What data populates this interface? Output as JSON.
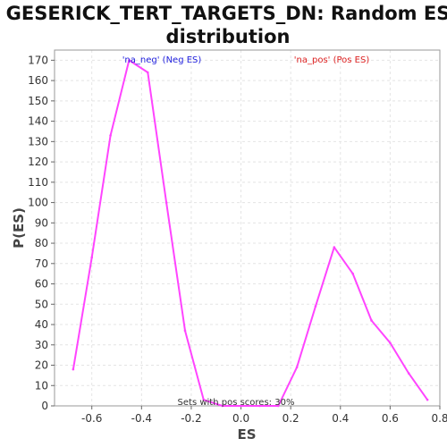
{
  "chart_data": {
    "type": "line",
    "title_line1": "GESERICK_TERT_TARGETS_DN: Random ES",
    "title_line2": "distribution",
    "xlabel": "ES",
    "ylabel": "P(ES)",
    "xlim": [
      -0.75,
      0.8
    ],
    "ylim": [
      0,
      175
    ],
    "x_ticks": [
      -0.6,
      -0.4,
      -0.2,
      0.0,
      0.2,
      0.4,
      0.6,
      0.8
    ],
    "y_ticks": [
      0,
      10,
      20,
      30,
      40,
      50,
      60,
      70,
      80,
      90,
      100,
      110,
      120,
      130,
      140,
      150,
      160,
      170
    ],
    "grid": true,
    "series": [
      {
        "color": "#ff44ff",
        "x": [
          -0.675,
          -0.6,
          -0.525,
          -0.45,
          -0.375,
          -0.3,
          -0.225,
          -0.15,
          -0.075,
          0.0,
          0.075,
          0.15,
          0.225,
          0.3,
          0.375,
          0.45,
          0.525,
          0.6,
          0.675,
          0.75
        ],
        "y": [
          18,
          73,
          133,
          170,
          164,
          100,
          37,
          3,
          0,
          0,
          0,
          0,
          19,
          49,
          78,
          65,
          42,
          31,
          16,
          3
        ]
      }
    ],
    "annotations": {
      "neg": {
        "text": "'na_neg' (Neg ES)",
        "color": "#2222dd"
      },
      "pos": {
        "text": "'na_pos' (Pos ES)",
        "color": "#dd2222"
      },
      "sets": {
        "text": "Sets with pos scores: 30%",
        "color": "#333333"
      }
    }
  }
}
